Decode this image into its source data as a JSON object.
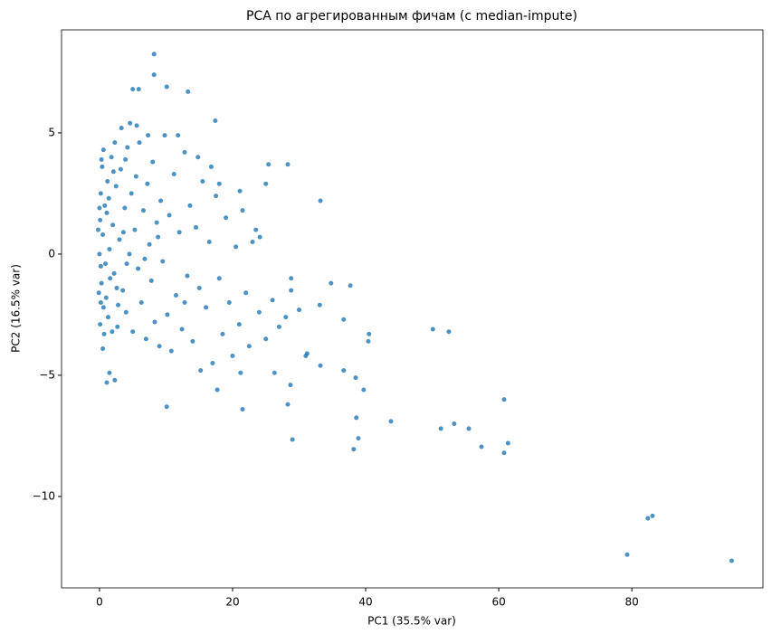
{
  "chart_data": {
    "type": "scatter",
    "title": "PCA по агрегированным фичам (с median-impute)",
    "x_label": "PC1 (35.5% var)",
    "y_label": "PC2 (16.5% var)",
    "color": "#1f77b4",
    "xlim": [
      -5.7,
      99.7
    ],
    "ylim": [
      -13.77,
      9.25
    ],
    "xticks": [
      0,
      20,
      40,
      60,
      80
    ],
    "yticks": [
      {
        "value": -10,
        "label": "−10"
      },
      {
        "value": -5,
        "label": "−5"
      },
      0,
      5
    ],
    "x": [
      8.2,
      8.2,
      10.1,
      13.3,
      5.0,
      5.9,
      17.4,
      25.4,
      28.3,
      33.2,
      25.0,
      21.1,
      24.1,
      28.8,
      28.8,
      34.8,
      37.7,
      33.1,
      36.7,
      50.1,
      52.5,
      40.5,
      40.4,
      31.2,
      33.2,
      36.7,
      38.5,
      39.7,
      28.7,
      10.1,
      28.3,
      38.6,
      43.8,
      51.3,
      53.3,
      55.5,
      29.0,
      38.9,
      38.2,
      57.4,
      60.8,
      61.4,
      60.8,
      79.3,
      82.4,
      83.1,
      95.0,
      1.5,
      1.1,
      2.3,
      17.7,
      21.5,
      21.2,
      26.3,
      0.2,
      0.3,
      0.5,
      0.4,
      0.6,
      0.1,
      0.2,
      0.8,
      1.0,
      1.2,
      1.5,
      1.3,
      1.8,
      2.0,
      2.2,
      2.5,
      2.7,
      3.0,
      3.2,
      3.5,
      3.8,
      4.0,
      4.2,
      4.5,
      4.8,
      5.0,
      5.3,
      5.5,
      5.8,
      6.0,
      6.3,
      6.6,
      7.0,
      7.2,
      7.5,
      7.8,
      8.0,
      8.3,
      8.6,
      9.0,
      9.2,
      9.5,
      9.8,
      10.2,
      10.5,
      10.8,
      11.2,
      11.5,
      12.0,
      12.4,
      12.8,
      13.2,
      13.6,
      14.0,
      14.5,
      15.0,
      15.5,
      16.0,
      16.5,
      17.0,
      17.5,
      18.0,
      18.5,
      19.0,
      19.5,
      20.0,
      20.5,
      21.0,
      22.0,
      22.5,
      23.0,
      24.0,
      25.0,
      26.0,
      27.0,
      28.0,
      30.0,
      31.0,
      0.0,
      0.1,
      -0.2,
      -0.1,
      0.3,
      0.7,
      0.9,
      1.1,
      1.6,
      2.3,
      2.8,
      3.3,
      3.6,
      4.1,
      0.5,
      1.4,
      2.1,
      2.6,
      0.0,
      0.2,
      0.6,
      1.9,
      3.9,
      5.6,
      6.8,
      7.3,
      4.6,
      8.8,
      11.8,
      12.8,
      15.2,
      14.8,
      16.8,
      18.0,
      21.5,
      23.5
    ],
    "y": [
      8.25,
      7.4,
      6.9,
      6.7,
      6.8,
      6.8,
      5.5,
      3.7,
      3.7,
      2.2,
      2.9,
      2.6,
      0.7,
      -1.0,
      -1.5,
      -1.2,
      -1.3,
      -2.1,
      -2.7,
      -3.1,
      -3.2,
      -3.3,
      -3.6,
      -4.1,
      -4.6,
      -4.8,
      -5.1,
      -5.6,
      -5.4,
      -6.3,
      -6.2,
      -6.75,
      -6.9,
      -7.2,
      -7.0,
      -7.2,
      -7.65,
      -7.6,
      -8.05,
      -7.95,
      -6.0,
      -7.8,
      -8.2,
      -12.4,
      -10.9,
      -10.8,
      -12.65,
      -4.9,
      -5.3,
      -5.2,
      -5.6,
      -6.4,
      -4.9,
      -4.9,
      2.5,
      -1.2,
      0.8,
      3.6,
      -2.2,
      1.4,
      -0.5,
      2.0,
      -1.8,
      3.0,
      0.2,
      -2.6,
      4.0,
      1.2,
      -0.8,
      2.8,
      -3.0,
      0.6,
      3.5,
      -1.5,
      1.9,
      -2.4,
      4.4,
      0.0,
      2.5,
      -3.2,
      1.0,
      3.2,
      -0.6,
      4.6,
      -2.0,
      1.8,
      -3.5,
      2.9,
      0.4,
      -1.1,
      3.8,
      -2.8,
      1.3,
      -3.8,
      2.2,
      -0.3,
      4.9,
      -2.5,
      1.6,
      -4.0,
      3.3,
      -1.7,
      0.9,
      -3.1,
      4.2,
      -0.9,
      2.0,
      -3.6,
      1.1,
      -1.4,
      3.0,
      -2.2,
      0.5,
      -4.5,
      2.4,
      -1.0,
      -3.3,
      1.5,
      -2.0,
      -4.2,
      0.3,
      -2.9,
      -1.6,
      -3.8,
      0.5,
      -2.4,
      -3.5,
      -1.9,
      -3.0,
      -2.6,
      -2.3,
      -4.2,
      0.0,
      -2.9,
      1.0,
      -1.6,
      3.9,
      -3.3,
      -0.4,
      1.7,
      -1.0,
      4.6,
      -2.1,
      5.2,
      0.9,
      -0.4,
      -3.9,
      2.3,
      3.4,
      -1.4,
      1.9,
      -2.0,
      4.3,
      -3.2,
      3.9,
      5.3,
      -0.2,
      4.9,
      5.4,
      0.7,
      4.9,
      -2.0,
      -4.8,
      4.0,
      3.6,
      2.9,
      1.8,
      1.0
    ]
  }
}
